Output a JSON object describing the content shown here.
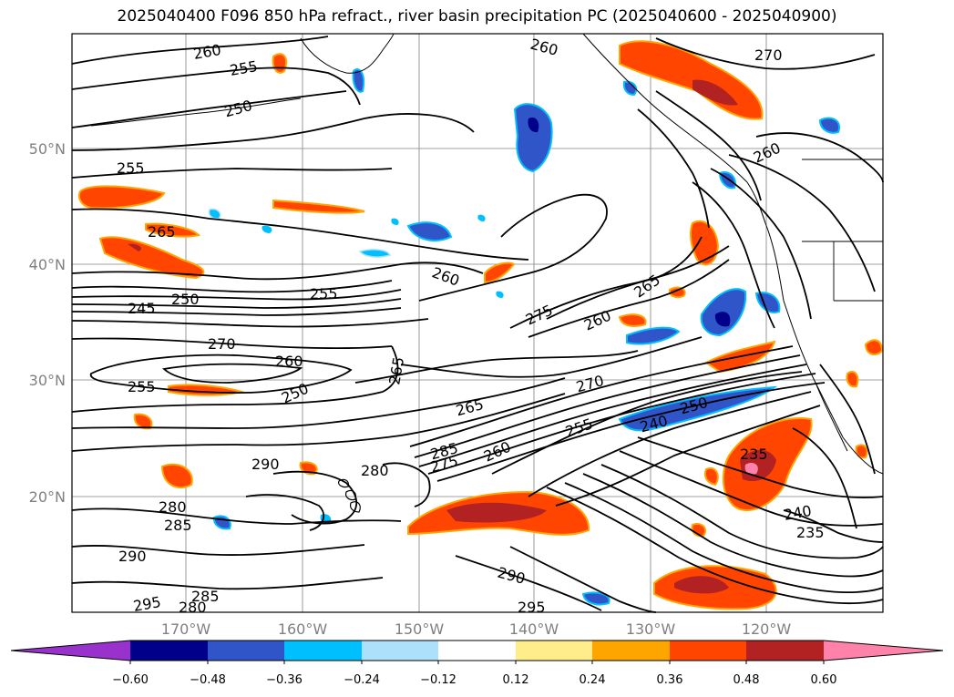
{
  "title": "2025040400 F096 850 hPa refract., river basin precipitation PC (2025040600 - 2025040900)",
  "map": {
    "lon_ticks": [
      "170°W",
      "160°W",
      "150°W",
      "140°W",
      "130°W",
      "120°W"
    ],
    "lat_ticks": [
      "50°N",
      "40°N",
      "30°N",
      "20°N"
    ],
    "grid": true
  },
  "contour_labels": [
    "260",
    "255",
    "250",
    "255",
    "265",
    "245",
    "250",
    "255",
    "260",
    "270",
    "260",
    "255",
    "250",
    "265",
    "275",
    "260",
    "265",
    "270",
    "265",
    "285",
    "275",
    "260",
    "280",
    "255",
    "250",
    "240",
    "235",
    "240",
    "235",
    "290",
    "280",
    "285",
    "295",
    "285",
    "280",
    "290",
    "290",
    "295",
    "260",
    "260",
    "270"
  ],
  "colors": {
    "contour": "#000000",
    "grid": "#808080",
    "neg_060": "#9932CC",
    "neg_048": "#00008B",
    "neg_036": "#3055C8",
    "neg_024": "#00BFFF",
    "neg_012": "#ADE0FA",
    "zero": "#FFFFFF",
    "pos_012": "#FFEC8B",
    "pos_024": "#FFA500",
    "pos_036": "#FF4500",
    "pos_048": "#B22222",
    "pos_060": "#FF82AB"
  },
  "colorbar": {
    "ticks": [
      "−0.60",
      "−0.48",
      "−0.36",
      "−0.24",
      "−0.12",
      "0.12",
      "0.24",
      "0.36",
      "0.48",
      "0.60"
    ]
  }
}
